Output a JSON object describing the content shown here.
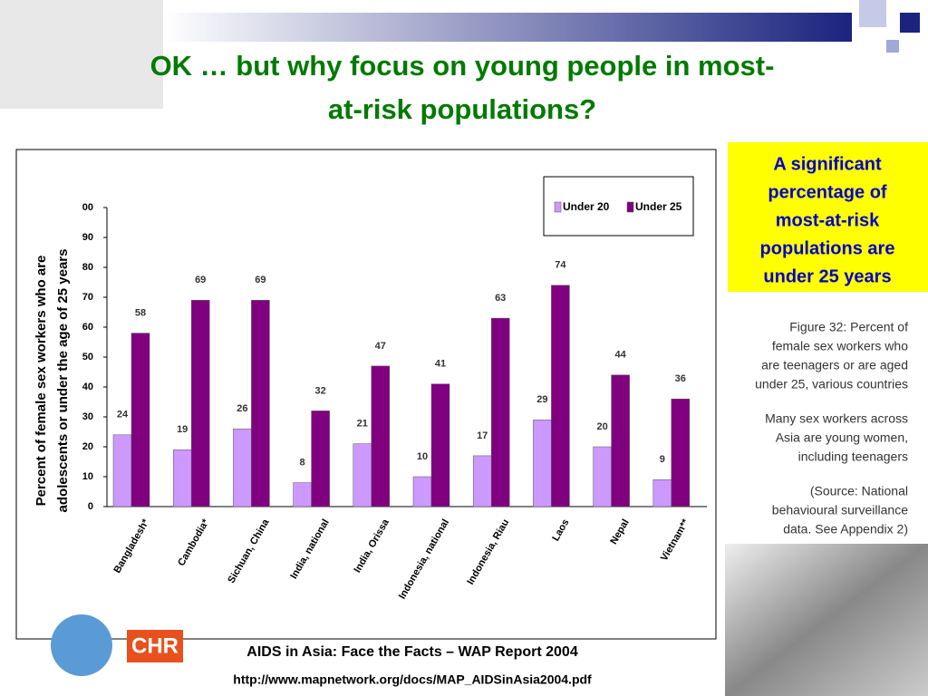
{
  "slide": {
    "title": [
      "OK … but why focus on young people in most-",
      "at-risk populations?"
    ],
    "callout": [
      "A significant",
      "percentage of",
      "most-at-risk",
      "populations are",
      "under 25 years"
    ],
    "figure_caption": [
      "Figure 32: Percent of",
      "female sex workers who",
      "are teenagers or are aged",
      "under 25, various countries"
    ],
    "figure_note": [
      "Many sex workers across",
      "Asia are young women,",
      "including teenagers"
    ],
    "figure_source": [
      "(Source: National",
      "behavioural surveillance",
      "data. See Appendix 2)"
    ],
    "logo_text": "CHR",
    "footer": "AIDS in Asia: Face the Facts – WAP Report 2004",
    "url": "http://www.mapnetwork.org/docs/MAP_AIDSinAsia2004.pdf"
  },
  "chart_data": {
    "type": "bar",
    "y_label": [
      "Percent of female sex workers who are",
      "adolescents or under the age of 25 years"
    ],
    "categories": [
      "Bangladesh*",
      "Cambodia*",
      "Sichuan, China",
      "India, national",
      "India, Orissa",
      "Indonesia, national",
      "Indonesia, Riau",
      "Laos",
      "Nepal",
      "Vietnam**"
    ],
    "series": [
      {
        "name": "Under 20",
        "color": "#cc99ff",
        "values": [
          24,
          19,
          26,
          8,
          21,
          10,
          17,
          29,
          20,
          9
        ]
      },
      {
        "name": "Under 25",
        "color": "#800080",
        "values": [
          58,
          69,
          69,
          32,
          47,
          41,
          63,
          74,
          44,
          36
        ]
      }
    ],
    "ylim": [
      0,
      100
    ],
    "yticks": [
      0,
      10,
      20,
      30,
      40,
      50,
      60,
      70,
      80,
      90,
      {
        "value": 100,
        "label": "00"
      }
    ],
    "legend": "top-right"
  }
}
